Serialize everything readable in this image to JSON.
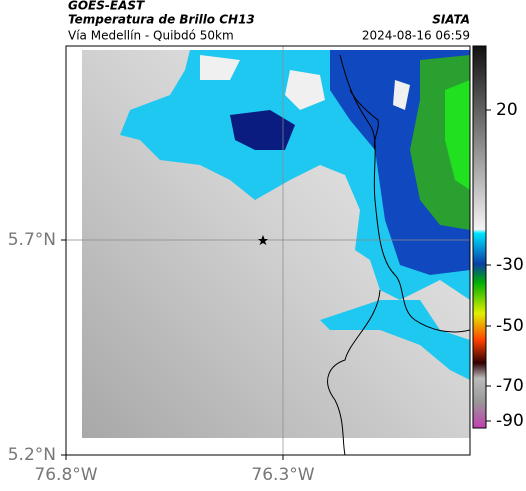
{
  "header": {
    "source": "GOES-EAST",
    "title": "Temperatura de Brillo CH13",
    "route": "Vía Medellín - Quibdó 50km",
    "org": "SIATA",
    "timestamp": "2024-08-16 06:59"
  },
  "map": {
    "lat_labels": [
      "5.7°N",
      "5.2°N"
    ],
    "lon_labels": [
      "76.8°W",
      "76.3°W"
    ]
  },
  "colorbar": {
    "ticks": [
      "20",
      "-30",
      "-50",
      "-70",
      "-90"
    ]
  }
}
